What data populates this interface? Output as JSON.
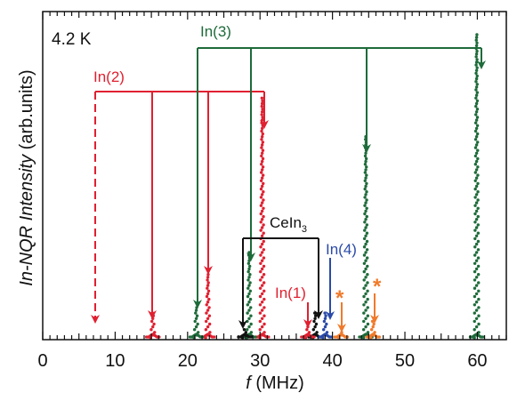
{
  "chart_data": {
    "type": "scatter",
    "xlabel_italic": "f",
    "xlabel_rest": " (MHz)",
    "ylabel": "In-NQR Intensity (arb.units)",
    "ylabel_italic": "In-NQR Intensity",
    "ylabel_rest": " (arb.units)",
    "xlim": [
      0,
      64
    ],
    "ylim": [
      0,
      1.0
    ],
    "x_ticks": [
      0,
      10,
      20,
      30,
      40,
      50,
      60
    ],
    "temperature_label": "4.2 K",
    "colors": {
      "In(2)": "#e02030",
      "In(3)": "#1e6b3a",
      "CeIn3": "#111111",
      "In(4)": "#2a4aa8",
      "In(1)": "#e02030",
      "impurity": "#f07a2a"
    },
    "series": [
      {
        "name": "In(2)",
        "peaks": [
          {
            "x": 15.2,
            "y": 0.08
          },
          {
            "x": 22.8,
            "y": 0.2
          },
          {
            "x": 30.3,
            "y": 0.75
          }
        ]
      },
      {
        "name": "In(3)",
        "peaks": [
          {
            "x": 21.2,
            "y": 0.1
          },
          {
            "x": 28.5,
            "y": 0.27
          },
          {
            "x": 44.6,
            "y": 0.63
          },
          {
            "x": 59.9,
            "y": 0.95
          }
        ]
      },
      {
        "name": "CeIn3",
        "peaks": [
          {
            "x": 27.9,
            "y": 0.03
          },
          {
            "x": 37.6,
            "y": 0.08
          }
        ]
      },
      {
        "name": "In(4)",
        "peaks": [
          {
            "x": 39.0,
            "y": 0.08
          }
        ]
      },
      {
        "name": "In(1)",
        "peaks": [
          {
            "x": 36.6,
            "y": 0.04
          }
        ]
      },
      {
        "name": "*",
        "peaks": [
          {
            "x": 41.2,
            "y": 0.02
          },
          {
            "x": 45.6,
            "y": 0.06
          }
        ]
      }
    ],
    "annotations": [
      {
        "text": "In(2)",
        "sub": "",
        "color": "#e02030"
      },
      {
        "text": "In(3)",
        "sub": "",
        "color": "#1e6b3a"
      },
      {
        "text": "CeIn",
        "sub": "3",
        "color": "#111111"
      },
      {
        "text": "In(4)",
        "sub": "",
        "color": "#2a4aa8"
      },
      {
        "text": "In(1)",
        "sub": "",
        "color": "#e02030"
      },
      {
        "text": "*",
        "sub": "",
        "color": "#f07a2a"
      },
      {
        "text": "*",
        "sub": "",
        "color": "#f07a2a"
      }
    ]
  }
}
